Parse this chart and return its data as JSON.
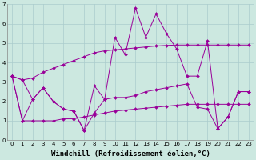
{
  "background_color": "#cce8e0",
  "grid_color": "#aacccc",
  "line_color": "#990099",
  "marker": "D",
  "marker_size": 2,
  "xlim": [
    -0.5,
    23.5
  ],
  "ylim": [
    0,
    7
  ],
  "xticks": [
    0,
    1,
    2,
    3,
    4,
    5,
    6,
    7,
    8,
    9,
    10,
    11,
    12,
    13,
    14,
    15,
    16,
    17,
    18,
    19,
    20,
    21,
    22,
    23
  ],
  "yticks": [
    0,
    1,
    2,
    3,
    4,
    5,
    6,
    7
  ],
  "xlabel": "Windchill (Refroidissement éolien,°C)",
  "series": [
    [
      3.3,
      3.1,
      3.2,
      3.5,
      3.7,
      3.9,
      4.1,
      4.3,
      4.5,
      4.6,
      4.65,
      4.7,
      4.75,
      4.8,
      4.85,
      4.88,
      4.9,
      4.9,
      4.9,
      4.9,
      4.9,
      4.9,
      4.9,
      4.9
    ],
    [
      3.3,
      3.1,
      2.1,
      2.7,
      2.0,
      1.6,
      1.5,
      0.5,
      2.8,
      2.1,
      5.3,
      4.4,
      6.8,
      5.3,
      6.5,
      5.5,
      4.7,
      3.3,
      3.3,
      5.1,
      0.6,
      1.2,
      2.5,
      2.5
    ],
    [
      3.3,
      1.0,
      2.1,
      2.7,
      2.0,
      1.6,
      1.5,
      0.5,
      1.4,
      2.1,
      2.2,
      2.2,
      2.3,
      2.5,
      2.6,
      2.7,
      2.8,
      2.9,
      1.7,
      1.6,
      0.6,
      1.2,
      2.5,
      2.5
    ],
    [
      3.3,
      1.0,
      1.0,
      1.0,
      1.0,
      1.1,
      1.1,
      1.2,
      1.3,
      1.4,
      1.5,
      1.55,
      1.6,
      1.65,
      1.7,
      1.75,
      1.8,
      1.85,
      1.85,
      1.85,
      1.85,
      1.85,
      1.85,
      1.85
    ]
  ],
  "tick_fontsize": 5,
  "xlabel_fontsize": 6.5,
  "xlabel_family": "monospace",
  "xlabel_weight": "bold",
  "linewidth": 0.7
}
